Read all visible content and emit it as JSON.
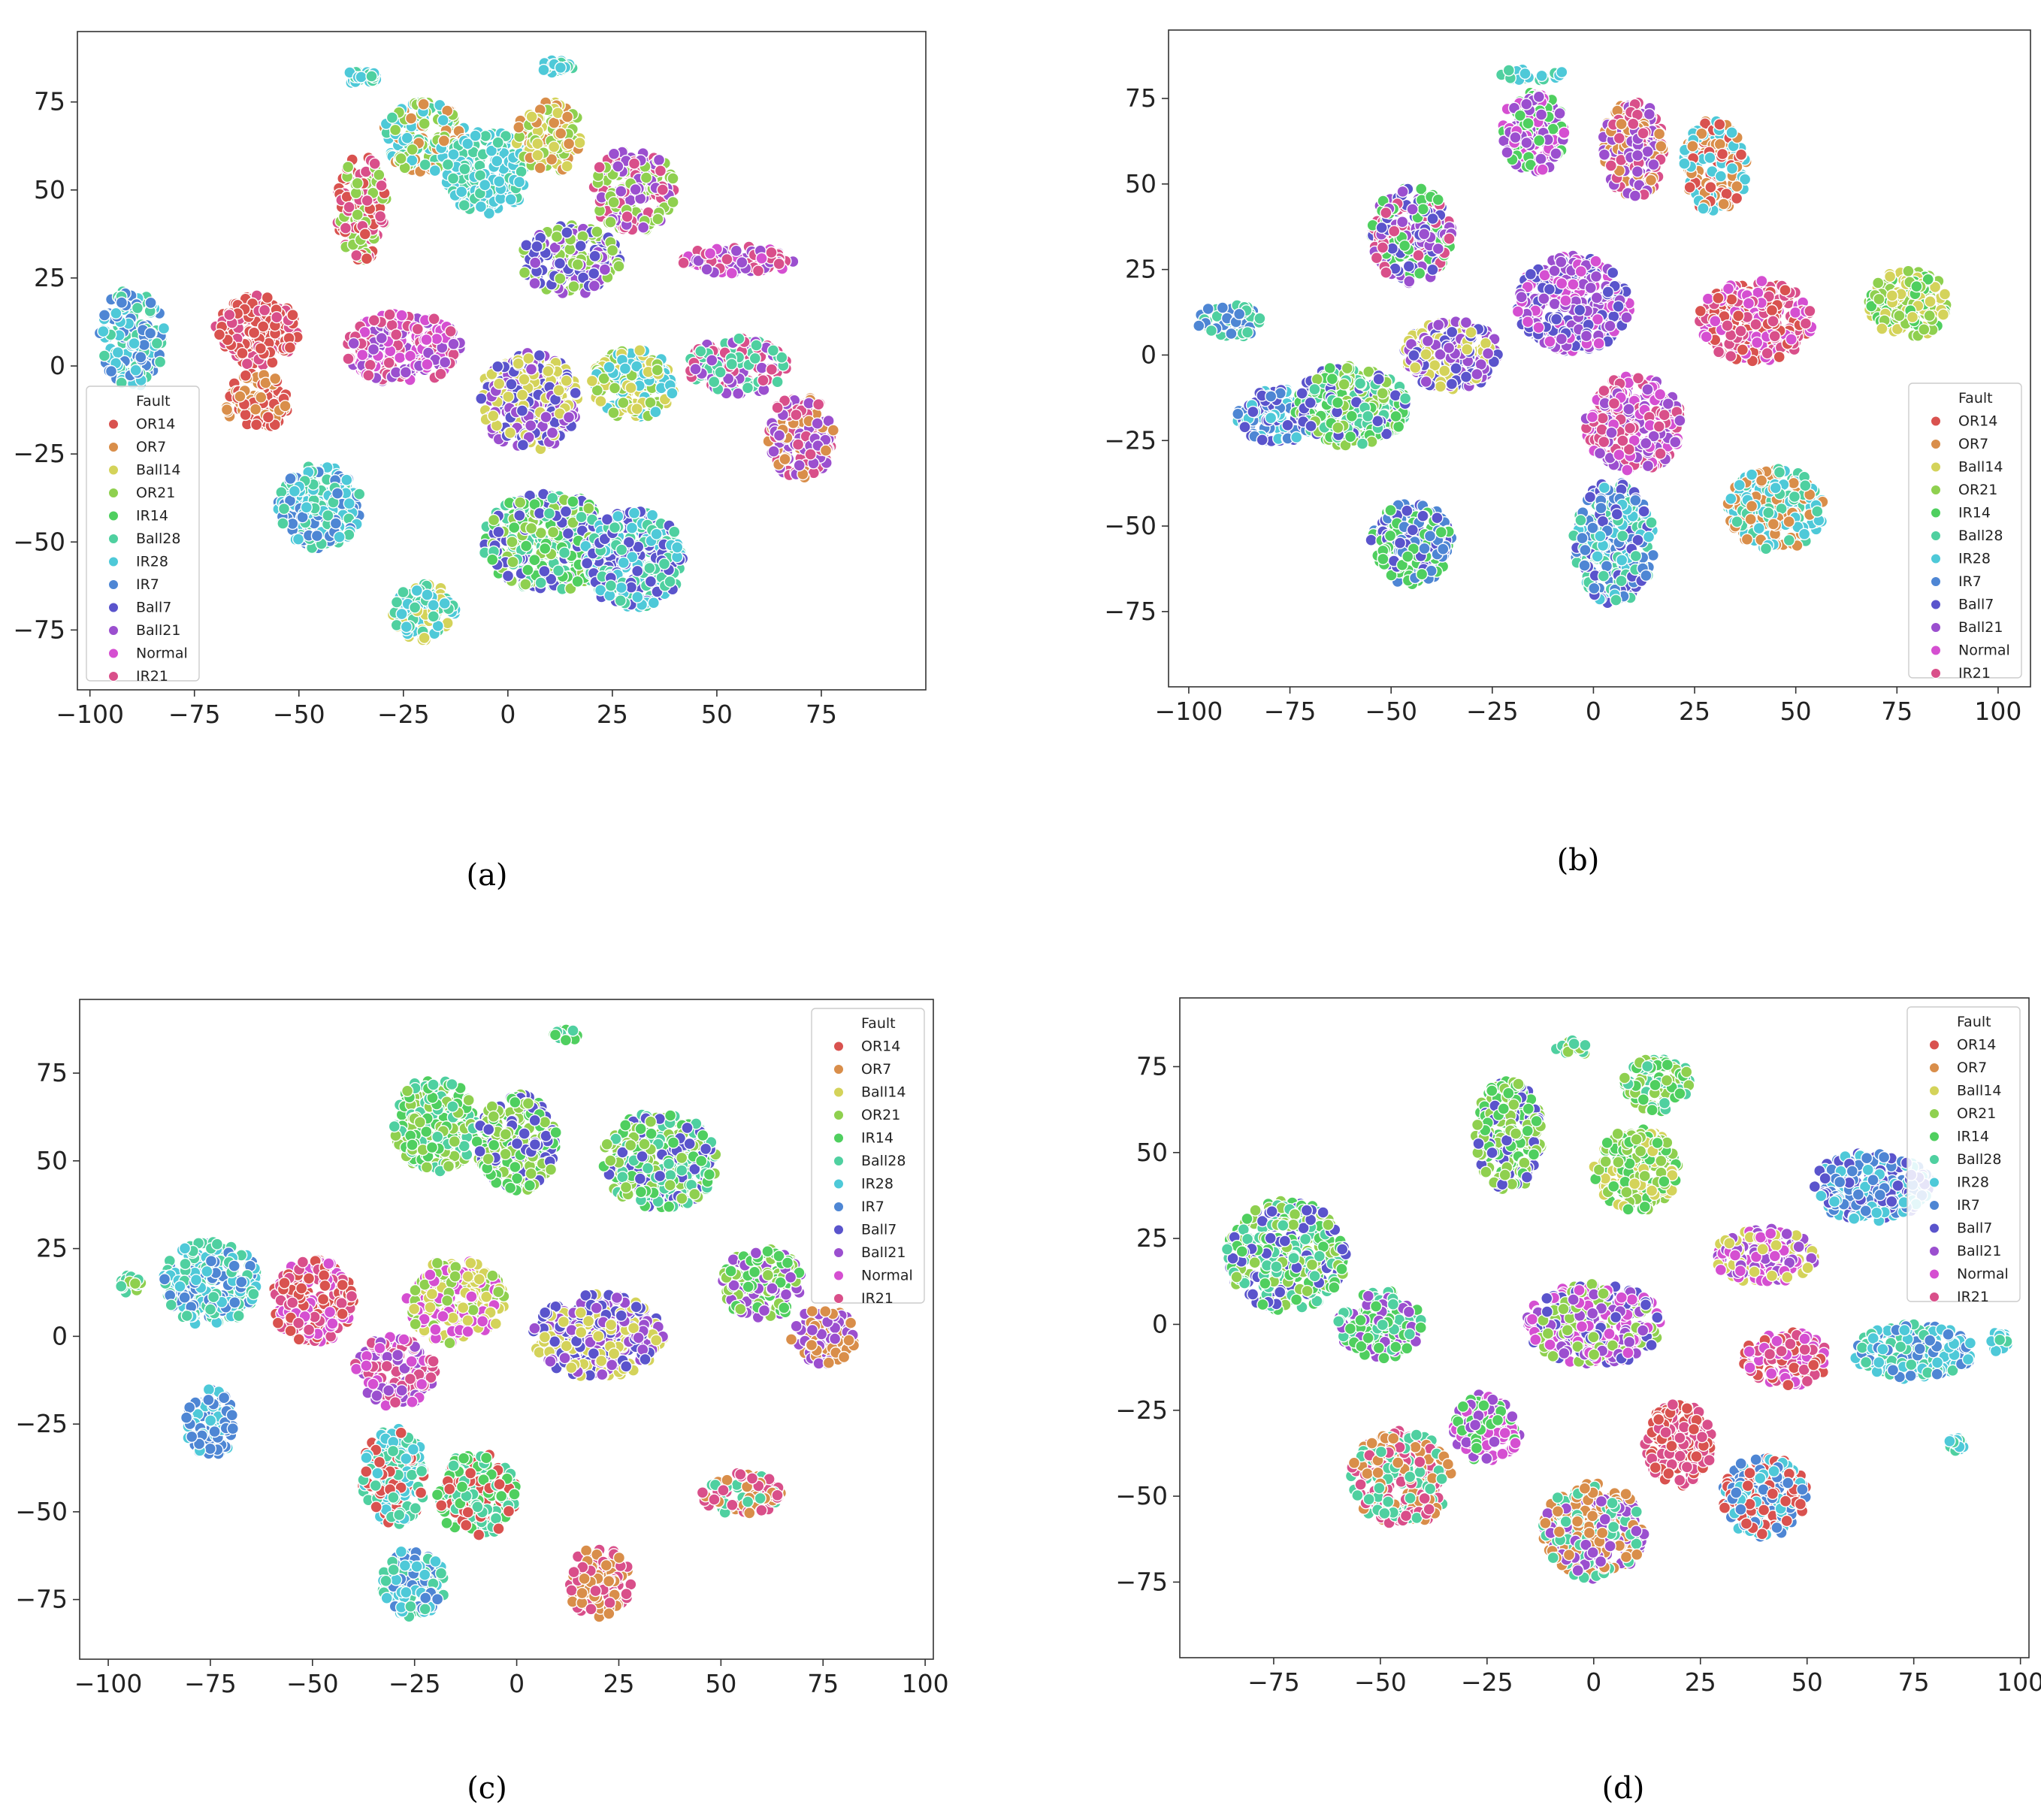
{
  "figure": {
    "captions": [
      "(a)",
      "(b)",
      "(c)",
      "(d)"
    ]
  },
  "legend": {
    "title": "Fault",
    "entries": [
      {
        "name": "OR14",
        "color": "#d9524f"
      },
      {
        "name": "OR7",
        "color": "#d98e4a"
      },
      {
        "name": "Ball14",
        "color": "#d4d35a"
      },
      {
        "name": "OR21",
        "color": "#8fd04f"
      },
      {
        "name": "IR14",
        "color": "#4fcf5f"
      },
      {
        "name": "Ball28",
        "color": "#4fd0a0"
      },
      {
        "name": "IR28",
        "color": "#4ec9d8"
      },
      {
        "name": "IR7",
        "color": "#4e86d4"
      },
      {
        "name": "Ball7",
        "color": "#5a54cc"
      },
      {
        "name": "Ball21",
        "color": "#9b4fcf"
      },
      {
        "name": "Normal",
        "color": "#d54fd1"
      },
      {
        "name": "IR21",
        "color": "#d94f8a"
      }
    ]
  },
  "chart_data": [
    {
      "type": "scatter",
      "panel": "(a)",
      "xlim": [
        -103,
        100
      ],
      "ylim": [
        -92,
        95
      ],
      "xticks": [
        -100,
        -75,
        -50,
        -25,
        0,
        25,
        50,
        75
      ],
      "yticks": [
        -75,
        -50,
        -25,
        0,
        25,
        50,
        75
      ],
      "legend_position": "lower-left",
      "clusters": [
        {
          "x": -90,
          "y": 8,
          "rx": 8,
          "ry": 14,
          "mix": [
            "IR7",
            "IR28",
            "Ball28"
          ]
        },
        {
          "x": -60,
          "y": 10,
          "rx": 10,
          "ry": 10,
          "mix": [
            "OR14",
            "OR14",
            "IR21"
          ]
        },
        {
          "x": -60,
          "y": -10,
          "rx": 8,
          "ry": 8,
          "mix": [
            "OR14",
            "OR7"
          ]
        },
        {
          "x": -45,
          "y": -40,
          "rx": 10,
          "ry": 12,
          "mix": [
            "IR28",
            "IR7",
            "Ball28"
          ]
        },
        {
          "x": -35,
          "y": 45,
          "rx": 6,
          "ry": 15,
          "mix": [
            "OR14",
            "IR21",
            "OR21"
          ]
        },
        {
          "x": -20,
          "y": 65,
          "rx": 10,
          "ry": 10,
          "mix": [
            "IR28",
            "Ball28",
            "OR21",
            "OR7"
          ]
        },
        {
          "x": -5,
          "y": 55,
          "rx": 10,
          "ry": 12,
          "mix": [
            "IR28",
            "IR28",
            "Ball28"
          ]
        },
        {
          "x": 10,
          "y": 65,
          "rx": 8,
          "ry": 10,
          "mix": [
            "OR7",
            "OR21",
            "Ball14"
          ]
        },
        {
          "x": 30,
          "y": 50,
          "rx": 10,
          "ry": 12,
          "mix": [
            "OR21",
            "Ball21",
            "IR21"
          ]
        },
        {
          "x": 15,
          "y": 30,
          "rx": 12,
          "ry": 10,
          "mix": [
            "Ball21",
            "Ball7",
            "OR21"
          ]
        },
        {
          "x": 55,
          "y": 30,
          "rx": 14,
          "ry": 4,
          "mix": [
            "IR21",
            "Normal",
            "Ball21"
          ]
        },
        {
          "x": -25,
          "y": 5,
          "rx": 14,
          "ry": 10,
          "mix": [
            "Normal",
            "Ball21",
            "IR21"
          ]
        },
        {
          "x": 5,
          "y": -10,
          "rx": 12,
          "ry": 14,
          "mix": [
            "Ball14",
            "Ball7",
            "Ball21"
          ]
        },
        {
          "x": 30,
          "y": -5,
          "rx": 10,
          "ry": 10,
          "mix": [
            "Ball14",
            "IR28",
            "OR21"
          ]
        },
        {
          "x": 55,
          "y": 0,
          "rx": 12,
          "ry": 8,
          "mix": [
            "Ball21",
            "IR21",
            "Ball28"
          ]
        },
        {
          "x": 70,
          "y": -20,
          "rx": 8,
          "ry": 12,
          "mix": [
            "OR7",
            "Ball21",
            "IR21"
          ]
        },
        {
          "x": 10,
          "y": -50,
          "rx": 16,
          "ry": 14,
          "mix": [
            "IR14",
            "OR21",
            "Ball28",
            "Ball7"
          ]
        },
        {
          "x": 30,
          "y": -55,
          "rx": 12,
          "ry": 14,
          "mix": [
            "Ball28",
            "IR28",
            "Ball7"
          ]
        },
        {
          "x": -20,
          "y": -70,
          "rx": 8,
          "ry": 8,
          "mix": [
            "IR28",
            "Ball14",
            "Ball28"
          ]
        },
        {
          "x": 12,
          "y": 85,
          "rx": 4,
          "ry": 2,
          "mix": [
            "Ball28",
            "IR28"
          ]
        },
        {
          "x": -35,
          "y": 82,
          "rx": 4,
          "ry": 2,
          "mix": [
            "Ball28",
            "IR28"
          ]
        }
      ]
    },
    {
      "type": "scatter",
      "panel": "(b)",
      "xlim": [
        -105,
        108
      ],
      "ylim": [
        -97,
        95
      ],
      "xticks": [
        -100,
        -75,
        -50,
        -25,
        0,
        25,
        50,
        75,
        100
      ],
      "yticks": [
        -75,
        -50,
        -25,
        0,
        25,
        50,
        75
      ],
      "legend_position": "lower-right",
      "clusters": [
        {
          "x": -78,
          "y": -18,
          "rx": 10,
          "ry": 8,
          "mix": [
            "IR7",
            "IR28",
            "Ball7"
          ]
        },
        {
          "x": -60,
          "y": -15,
          "rx": 14,
          "ry": 12,
          "mix": [
            "IR14",
            "Ball28",
            "OR21",
            "Ball7"
          ]
        },
        {
          "x": -45,
          "y": 35,
          "rx": 10,
          "ry": 14,
          "mix": [
            "Ball21",
            "IR14",
            "Ball7",
            "IR21"
          ]
        },
        {
          "x": -35,
          "y": 0,
          "rx": 12,
          "ry": 10,
          "mix": [
            "Ball14",
            "Ball7",
            "Ball21"
          ]
        },
        {
          "x": -45,
          "y": -55,
          "rx": 10,
          "ry": 12,
          "mix": [
            "IR7",
            "Ball7",
            "IR14"
          ]
        },
        {
          "x": -15,
          "y": 65,
          "rx": 8,
          "ry": 12,
          "mix": [
            "Ball21",
            "IR14",
            "Normal"
          ]
        },
        {
          "x": 10,
          "y": 60,
          "rx": 8,
          "ry": 14,
          "mix": [
            "OR7",
            "Ball21",
            "IR21"
          ]
        },
        {
          "x": 30,
          "y": 55,
          "rx": 8,
          "ry": 14,
          "mix": [
            "IR28",
            "OR7",
            "OR14"
          ]
        },
        {
          "x": 40,
          "y": 10,
          "rx": 14,
          "ry": 12,
          "mix": [
            "OR14",
            "IR21",
            "Normal"
          ]
        },
        {
          "x": 78,
          "y": 15,
          "rx": 10,
          "ry": 10,
          "mix": [
            "OR21",
            "IR14",
            "Ball14"
          ]
        },
        {
          "x": 45,
          "y": -45,
          "rx": 12,
          "ry": 12,
          "mix": [
            "IR28",
            "Ball28",
            "OR7"
          ]
        },
        {
          "x": 5,
          "y": -55,
          "rx": 10,
          "ry": 18,
          "mix": [
            "IR7",
            "Ball28",
            "IR28",
            "Ball7"
          ]
        },
        {
          "x": 10,
          "y": -20,
          "rx": 12,
          "ry": 14,
          "mix": [
            "Normal",
            "IR21",
            "Ball21"
          ]
        },
        {
          "x": -5,
          "y": 15,
          "rx": 14,
          "ry": 14,
          "mix": [
            "Ball7",
            "Normal",
            "Ball21"
          ]
        },
        {
          "x": -90,
          "y": 10,
          "rx": 8,
          "ry": 5,
          "mix": [
            "IR7",
            "Ball28"
          ]
        },
        {
          "x": -15,
          "y": 82,
          "rx": 8,
          "ry": 2,
          "mix": [
            "Ball28",
            "IR28"
          ]
        }
      ]
    },
    {
      "type": "scatter",
      "panel": "(c)",
      "xlim": [
        -107,
        102
      ],
      "ylim": [
        -92,
        96
      ],
      "xticks": [
        -100,
        -75,
        -50,
        -25,
        0,
        25,
        50,
        75,
        100
      ],
      "yticks": [
        -75,
        -50,
        -25,
        0,
        25,
        50,
        75
      ],
      "legend_position": "top-right",
      "clusters": [
        {
          "x": -75,
          "y": 15,
          "rx": 12,
          "ry": 12,
          "mix": [
            "IR28",
            "Ball28",
            "IR7"
          ]
        },
        {
          "x": -50,
          "y": 10,
          "rx": 10,
          "ry": 12,
          "mix": [
            "OR14",
            "Normal",
            "IR21"
          ]
        },
        {
          "x": -75,
          "y": -25,
          "rx": 6,
          "ry": 10,
          "mix": [
            "IR7",
            "IR28"
          ]
        },
        {
          "x": -30,
          "y": -40,
          "rx": 8,
          "ry": 14,
          "mix": [
            "OR14",
            "IR28",
            "Ball28"
          ]
        },
        {
          "x": -25,
          "y": -70,
          "rx": 8,
          "ry": 10,
          "mix": [
            "IR7",
            "IR28",
            "Ball28"
          ]
        },
        {
          "x": -20,
          "y": 60,
          "rx": 10,
          "ry": 14,
          "mix": [
            "IR14",
            "OR21",
            "Ball28"
          ]
        },
        {
          "x": 0,
          "y": 55,
          "rx": 10,
          "ry": 14,
          "mix": [
            "Ball7",
            "IR14",
            "OR21"
          ]
        },
        {
          "x": 35,
          "y": 50,
          "rx": 14,
          "ry": 14,
          "mix": [
            "IR14",
            "OR21",
            "Ball7",
            "Ball28"
          ]
        },
        {
          "x": -15,
          "y": 10,
          "rx": 12,
          "ry": 12,
          "mix": [
            "Ball14",
            "Normal",
            "OR21"
          ]
        },
        {
          "x": 20,
          "y": 0,
          "rx": 16,
          "ry": 12,
          "mix": [
            "Ball21",
            "Ball14",
            "Ball7"
          ]
        },
        {
          "x": 60,
          "y": 15,
          "rx": 10,
          "ry": 10,
          "mix": [
            "Ball21",
            "IR14",
            "OR21"
          ]
        },
        {
          "x": 75,
          "y": 0,
          "rx": 8,
          "ry": 8,
          "mix": [
            "OR7",
            "Ball21"
          ]
        },
        {
          "x": 55,
          "y": -45,
          "rx": 10,
          "ry": 6,
          "mix": [
            "OR7",
            "IR21",
            "Ball28"
          ]
        },
        {
          "x": 20,
          "y": -70,
          "rx": 8,
          "ry": 10,
          "mix": [
            "OR7",
            "IR21"
          ]
        },
        {
          "x": -10,
          "y": -45,
          "rx": 10,
          "ry": 12,
          "mix": [
            "OR14",
            "IR14",
            "Ball28"
          ]
        },
        {
          "x": -30,
          "y": -10,
          "rx": 10,
          "ry": 10,
          "mix": [
            "Normal",
            "Ball21",
            "IR21"
          ]
        },
        {
          "x": -95,
          "y": 15,
          "rx": 3,
          "ry": 3,
          "mix": [
            "Ball28",
            "OR21"
          ]
        },
        {
          "x": 12,
          "y": 86,
          "rx": 3,
          "ry": 2,
          "mix": [
            "Ball28",
            "IR14"
          ]
        }
      ]
    },
    {
      "type": "scatter",
      "panel": "(d)",
      "xlim": [
        -97,
        102
      ],
      "ylim": [
        -97,
        95
      ],
      "xticks": [
        -75,
        -50,
        -25,
        0,
        25,
        50,
        75,
        100
      ],
      "yticks": [
        -75,
        -50,
        -25,
        0,
        25,
        50,
        75
      ],
      "legend_position": "top-right",
      "clusters": [
        {
          "x": -72,
          "y": 20,
          "rx": 14,
          "ry": 16,
          "mix": [
            "IR14",
            "Ball28",
            "Ball7",
            "OR21"
          ]
        },
        {
          "x": -50,
          "y": 0,
          "rx": 10,
          "ry": 10,
          "mix": [
            "Ball21",
            "IR14",
            "Ball28"
          ]
        },
        {
          "x": -45,
          "y": -45,
          "rx": 12,
          "ry": 14,
          "mix": [
            "OR7",
            "Ball28",
            "IR21"
          ]
        },
        {
          "x": -25,
          "y": -30,
          "rx": 8,
          "ry": 10,
          "mix": [
            "Ball21",
            "IR14",
            "Normal"
          ]
        },
        {
          "x": -20,
          "y": 55,
          "rx": 8,
          "ry": 16,
          "mix": [
            "Ball7",
            "IR14",
            "OR21"
          ]
        },
        {
          "x": 10,
          "y": 45,
          "rx": 10,
          "ry": 12,
          "mix": [
            "Ball14",
            "OR21",
            "IR14"
          ]
        },
        {
          "x": 15,
          "y": 70,
          "rx": 8,
          "ry": 8,
          "mix": [
            "IR14",
            "Ball28",
            "OR21"
          ]
        },
        {
          "x": 65,
          "y": 40,
          "rx": 14,
          "ry": 10,
          "mix": [
            "IR7",
            "IR28",
            "Ball7"
          ]
        },
        {
          "x": 40,
          "y": 20,
          "rx": 12,
          "ry": 8,
          "mix": [
            "Ball14",
            "Normal",
            "Ball21"
          ]
        },
        {
          "x": 75,
          "y": -8,
          "rx": 14,
          "ry": 8,
          "mix": [
            "IR28",
            "IR7",
            "Ball28"
          ]
        },
        {
          "x": 45,
          "y": -10,
          "rx": 10,
          "ry": 8,
          "mix": [
            "OR14",
            "IR21",
            "Normal"
          ]
        },
        {
          "x": 40,
          "y": -50,
          "rx": 10,
          "ry": 12,
          "mix": [
            "IR28",
            "OR14",
            "IR7"
          ]
        },
        {
          "x": 20,
          "y": -35,
          "rx": 8,
          "ry": 12,
          "mix": [
            "OR14",
            "IR21"
          ]
        },
        {
          "x": 0,
          "y": -60,
          "rx": 12,
          "ry": 14,
          "mix": [
            "OR7",
            "Ball21",
            "Ball28"
          ]
        },
        {
          "x": 0,
          "y": 0,
          "rx": 16,
          "ry": 12,
          "mix": [
            "Normal",
            "Ball21",
            "Ball7",
            "OR21"
          ]
        },
        {
          "x": -5,
          "y": 80,
          "rx": 4,
          "ry": 3,
          "mix": [
            "Ball28",
            "OR21"
          ]
        },
        {
          "x": 85,
          "y": -35,
          "rx": 2,
          "ry": 2,
          "mix": [
            "Ball28",
            "IR28"
          ]
        },
        {
          "x": 95,
          "y": -5,
          "rx": 2,
          "ry": 3,
          "mix": [
            "Ball28",
            "IR28"
          ]
        }
      ]
    }
  ]
}
